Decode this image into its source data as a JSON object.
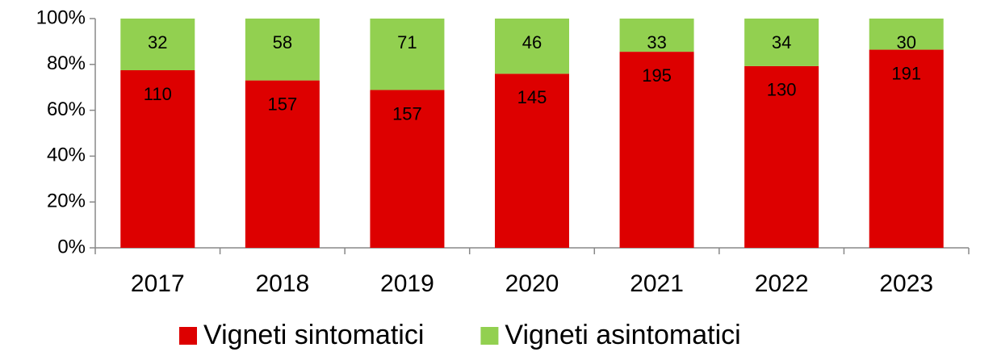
{
  "chart_data": {
    "type": "bar",
    "stacking": "percent",
    "categories": [
      "2017",
      "2018",
      "2019",
      "2020",
      "2021",
      "2022",
      "2023"
    ],
    "series": [
      {
        "name": "Vigneti sintomatici",
        "color": "#dd0000",
        "values": [
          110,
          157,
          157,
          145,
          195,
          130,
          191
        ]
      },
      {
        "name": "Vigneti asintomatici",
        "color": "#92d050",
        "values": [
          32,
          58,
          71,
          46,
          33,
          34,
          30
        ]
      }
    ],
    "ylim": [
      0,
      100
    ],
    "yticks": [
      {
        "value": 0,
        "label": "0%"
      },
      {
        "value": 20,
        "label": "20%"
      },
      {
        "value": 40,
        "label": "40%"
      },
      {
        "value": 60,
        "label": "60%"
      },
      {
        "value": 80,
        "label": "80%"
      },
      {
        "value": 100,
        "label": "100%"
      }
    ],
    "legend": "bottom"
  }
}
